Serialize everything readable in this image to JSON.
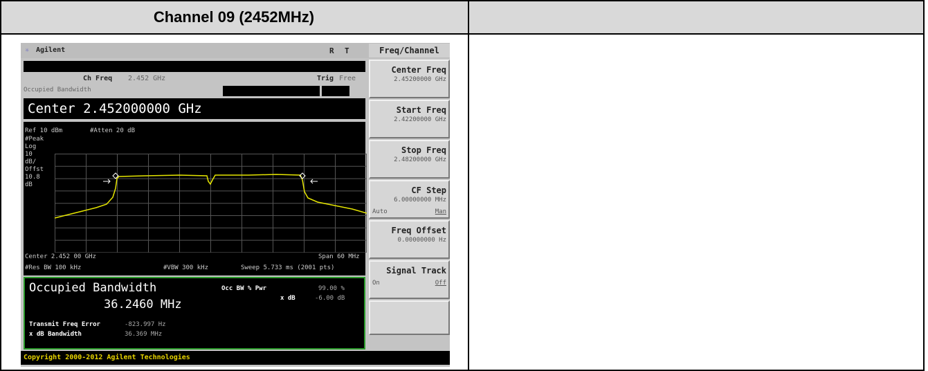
{
  "header": {
    "title": "Channel 09 (2452MHz)"
  },
  "analyzer": {
    "brand": "Agilent",
    "status": [
      "R",
      "T"
    ],
    "menu_title": "Freq/Channel",
    "ch_freq_label": "Ch Freq",
    "ch_freq": "2.452 GHz",
    "trig_label": "Trig",
    "trig": "Free",
    "mode": "Occupied Bandwidth",
    "center_entry": "Center 2.452000000 GHz",
    "ref": "Ref 10 dBm",
    "atten": "#Atten 20 dB",
    "scale_labels": [
      "#Peak",
      "Log",
      "10",
      "dB/",
      "Offst",
      "10.8",
      "dB"
    ],
    "center": "Center 2.452 00 GHz",
    "span": "Span 60 MHz",
    "res_bw": "#Res BW 100 kHz",
    "vbw": "#VBW 300 kHz",
    "sweep": "Sweep 5.733 ms (2001 pts)",
    "result_title": "Occupied Bandwidth",
    "result_value": "36.2460 MHz",
    "occ_label": "Occ BW % Pwr",
    "occ_value": "99.00 %",
    "xdb_label": "x dB",
    "xdb_value": "-6.00 dB",
    "tfe_label": "Transmit Freq Error",
    "tfe_value": "-823.997 Hz",
    "xbw_label": "x dB Bandwidth",
    "xbw_value": "36.369 MHz",
    "copyright": "Copyright 2000-2012 Agilent Technologies",
    "softkeys": [
      {
        "label": "Center Freq",
        "value": "2.45200000 GHz"
      },
      {
        "label": "Start Freq",
        "value": "2.42200000 GHz"
      },
      {
        "label": "Stop Freq",
        "value": "2.48200000 GHz"
      },
      {
        "label": "CF Step",
        "value": "6.00000000 MHz",
        "options": [
          "Auto",
          "Man"
        ]
      },
      {
        "label": "Freq Offset",
        "value": "0.00000000 Hz"
      },
      {
        "label": "Signal Track",
        "options": [
          "On",
          "Off"
        ]
      }
    ]
  }
}
